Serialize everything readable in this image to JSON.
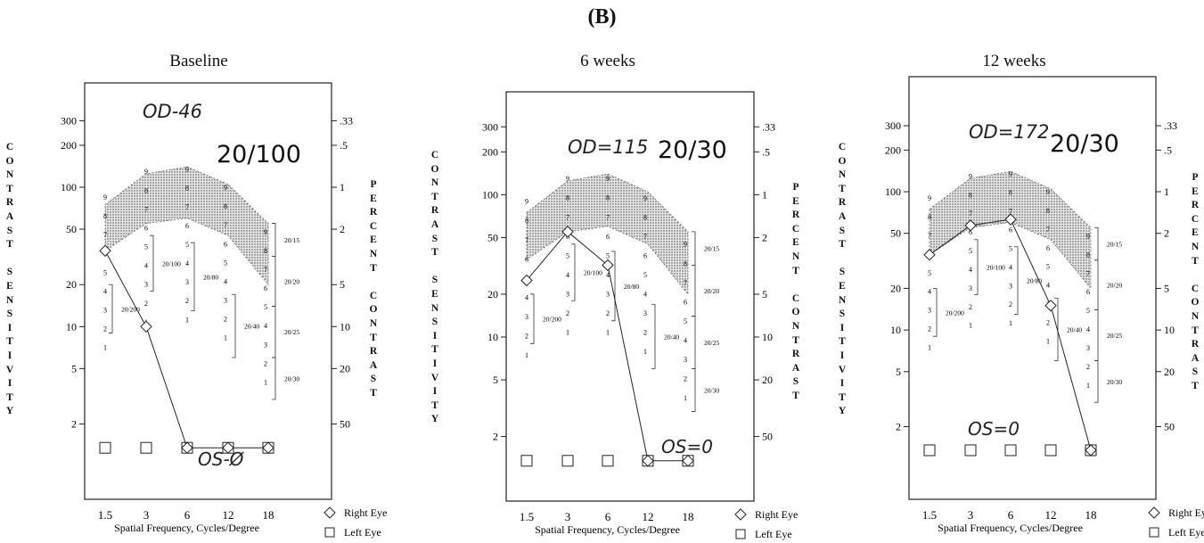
{
  "figure_label": "(B)",
  "axis_labels": {
    "left": "CONTRAST SENSITIVITY",
    "right": "PERCENT CONTRAST",
    "x": "Spatial Frequency, Cycles/Degree"
  },
  "legend": [
    {
      "symbol": "diamond",
      "label": "Right Eye"
    },
    {
      "symbol": "square",
      "label": "Left Eye"
    }
  ],
  "chart_data": [
    {
      "type": "line",
      "title": "Baseline",
      "xlabel": "Spatial Frequency, Cycles/Degree",
      "ylabel": "CONTRAST SENSITIVITY",
      "ylabel_right": "PERCENT CONTRAST",
      "y_scale": "log",
      "x_ticks": [
        "1.5",
        "3",
        "6",
        "12",
        "18"
      ],
      "y_ticks": [
        2,
        5,
        10,
        20,
        50,
        100,
        200,
        300
      ],
      "y_right_ticks": [
        ".33",
        ".5",
        "1",
        "2",
        "5",
        "10",
        "20",
        "50"
      ],
      "acuity_label": "20/100",
      "od_note": "OD-46",
      "os_note": "OS-Ø",
      "series": [
        {
          "name": "Right Eye",
          "values": [
            35,
            10,
            1.35,
            1.35,
            1.35
          ]
        },
        {
          "name": "Left Eye",
          "values": [
            1.35,
            1.35,
            1.35,
            1.35,
            1.35
          ]
        }
      ]
    },
    {
      "type": "line",
      "title": "6 weeks",
      "xlabel": "Spatial Frequency, Cycles/Degree",
      "ylabel": "CONTRAST SENSITIVITY",
      "ylabel_right": "PERCENT CONTRAST",
      "y_scale": "log",
      "x_ticks": [
        "1.5",
        "3",
        "6",
        "12",
        "18"
      ],
      "y_ticks": [
        2,
        5,
        10,
        20,
        50,
        100,
        200,
        300
      ],
      "y_right_ticks": [
        ".33",
        ".5",
        "1",
        "2",
        "5",
        "10",
        "20",
        "50"
      ],
      "acuity_label": "20/30",
      "od_note": "OD=115",
      "os_note": "OS=0",
      "series": [
        {
          "name": "Right Eye",
          "values": [
            25,
            55,
            32,
            1.35,
            1.35
          ]
        },
        {
          "name": "Left Eye",
          "values": [
            1.35,
            1.35,
            1.35,
            1.35,
            1.35
          ]
        }
      ]
    },
    {
      "type": "line",
      "title": "12 weeks",
      "xlabel": "Spatial Frequency, Cycles/Degree",
      "ylabel": "CONTRAST SENSITIVITY",
      "ylabel_right": "PERCENT CONTRAST",
      "y_scale": "log",
      "x_ticks": [
        "1.5",
        "3",
        "6",
        "12",
        "18"
      ],
      "y_ticks": [
        2,
        5,
        10,
        20,
        50,
        100,
        200,
        300
      ],
      "y_right_ticks": [
        ".33",
        ".5",
        "1",
        "2",
        "5",
        "10",
        "20",
        "50"
      ],
      "acuity_label": "20/30",
      "od_note": "OD=172",
      "os_note": "OS=0",
      "series": [
        {
          "name": "Right Eye",
          "values": [
            35,
            57,
            63,
            15,
            1.35
          ]
        },
        {
          "name": "Left Eye",
          "values": [
            1.35,
            1.35,
            1.35,
            1.35,
            1.35
          ]
        }
      ]
    }
  ],
  "norm_band": {
    "x": [
      "1.5",
      "3",
      "6",
      "12",
      "18"
    ],
    "upper": [
      75,
      125,
      140,
      105,
      55
    ],
    "lower": [
      35,
      55,
      60,
      45,
      20
    ]
  },
  "chart_grades": [
    {
      "x": "1.5",
      "levels": [
        "9",
        "8",
        "7",
        "6",
        "5",
        "4",
        "3",
        "2",
        "1"
      ]
    },
    {
      "x": "3",
      "levels": [
        "9",
        "8",
        "7",
        "6",
        "5",
        "4",
        "3",
        "2",
        "1"
      ]
    },
    {
      "x": "6",
      "levels": [
        "9",
        "8",
        "7",
        "6",
        "5",
        "4",
        "3",
        "2",
        "1"
      ]
    },
    {
      "x": "12",
      "levels": [
        "9",
        "8",
        "7",
        "6",
        "5",
        "4",
        "3",
        "2",
        "1"
      ]
    },
    {
      "x": "18",
      "levels": [
        "9",
        "8",
        "7",
        "6",
        "5",
        "4",
        "3",
        "2",
        "1"
      ]
    }
  ],
  "acuity_equivalents": [
    "20/200",
    "20/100",
    "20/80",
    "20/40",
    "20/15",
    "20/20",
    "20/25",
    "20/30"
  ]
}
